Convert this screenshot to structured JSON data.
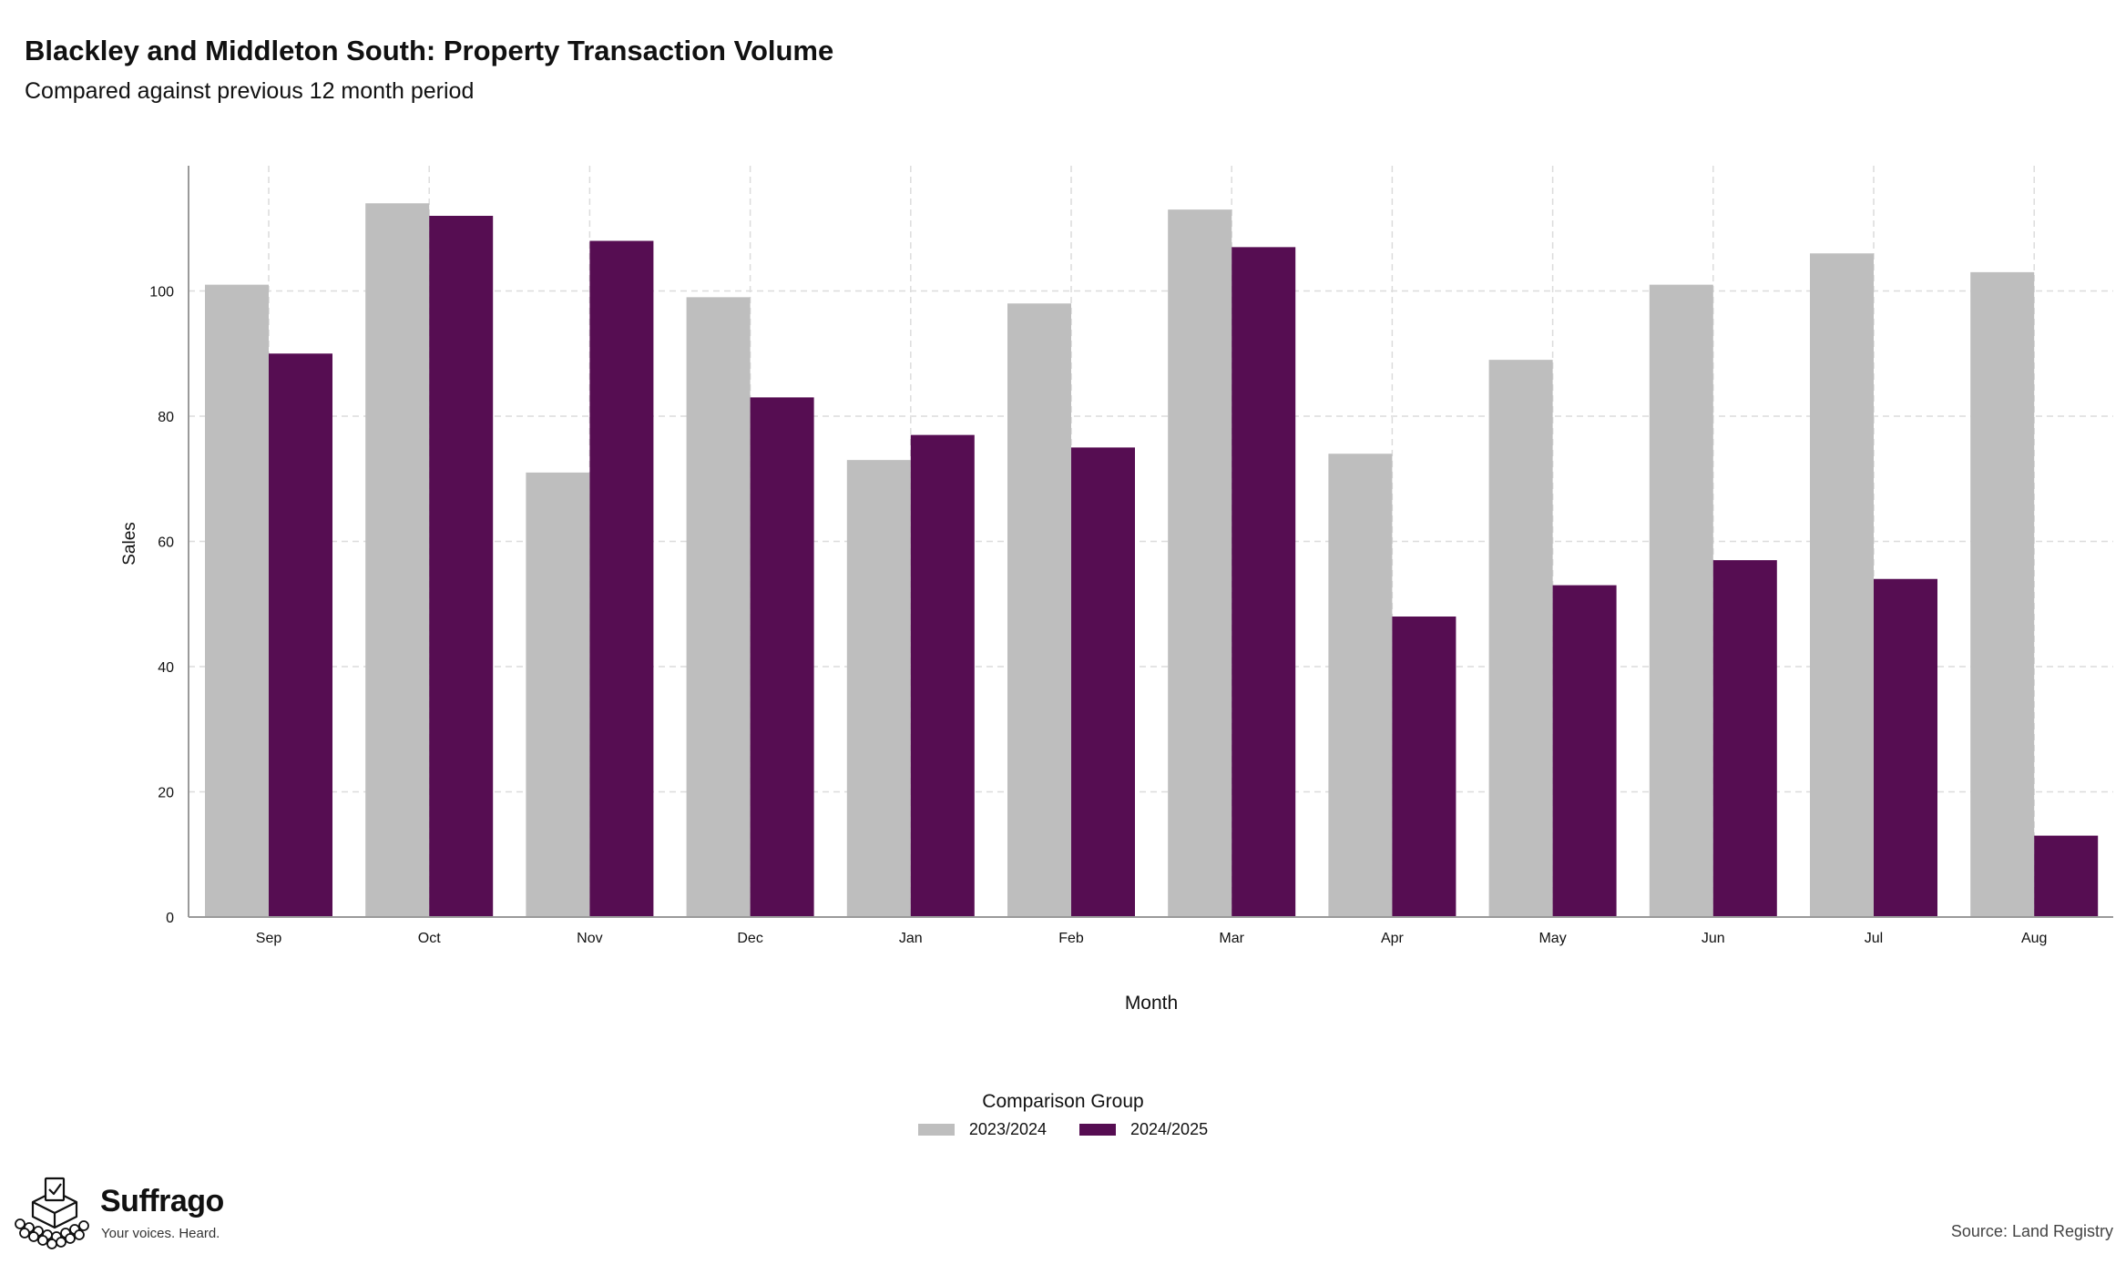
{
  "header": {
    "title": "Blackley and Middleton South: Property Transaction Volume",
    "subtitle": "Compared against previous 12 month period"
  },
  "chart_data": {
    "type": "bar",
    "title": "Blackley and Middleton South: Property Transaction Volume",
    "subtitle": "Compared against previous 12 month period",
    "xlabel": "Month",
    "ylabel": "Sales",
    "categories": [
      "Sep",
      "Oct",
      "Nov",
      "Dec",
      "Jan",
      "Feb",
      "Mar",
      "Apr",
      "May",
      "Jun",
      "Jul",
      "Aug"
    ],
    "series": [
      {
        "name": "2023/2024",
        "color": "#bebebe",
        "values": [
          101,
          114,
          71,
          99,
          73,
          98,
          113,
          74,
          89,
          101,
          106,
          103
        ]
      },
      {
        "name": "2024/2025",
        "color": "#560d52",
        "values": [
          90,
          112,
          108,
          83,
          77,
          75,
          107,
          48,
          53,
          57,
          54,
          13
        ]
      }
    ],
    "yticks": [
      0,
      20,
      40,
      60,
      80,
      100
    ],
    "ylim": [
      0,
      120
    ],
    "grid": true,
    "legend_title": "Comparison Group",
    "legend_position": "bottom"
  },
  "legend": {
    "title": "Comparison Group",
    "items": [
      {
        "label": "2023/2024",
        "color": "#bebebe"
      },
      {
        "label": "2024/2025",
        "color": "#560d52"
      }
    ]
  },
  "branding": {
    "name": "Suffrago",
    "tagline": "Your voices. Heard.",
    "logo_icon": "ballot-box-icon"
  },
  "footer": {
    "source": "Source: Land Registry"
  }
}
